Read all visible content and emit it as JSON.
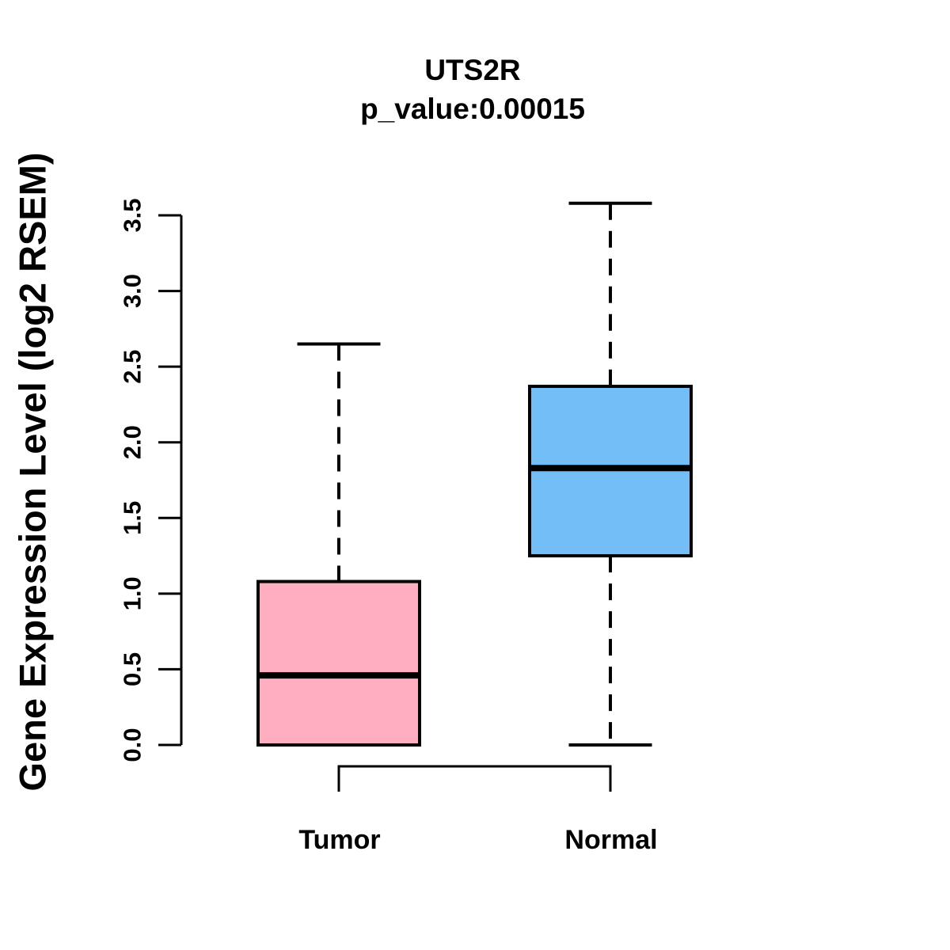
{
  "header": {
    "title": "UTS2R",
    "subtitle": "p_value:0.00015"
  },
  "chart_data": {
    "type": "boxplot",
    "title": "UTS2R",
    "subtitle": "p_value:0.00015",
    "ylabel": "Gene Expression Level (log2 RSEM)",
    "xlabel": "",
    "categories": [
      "Tumor",
      "Normal"
    ],
    "series": [
      {
        "name": "Tumor",
        "lower_whisker": 0.0,
        "q1": 0.0,
        "median": 0.46,
        "q3": 1.08,
        "upper_whisker": 2.65,
        "fill": "#FFAEC0"
      },
      {
        "name": "Normal",
        "lower_whisker": 0.0,
        "q1": 1.25,
        "median": 1.83,
        "q3": 2.37,
        "upper_whisker": 3.58,
        "fill": "#74BEF8"
      }
    ],
    "yticks": [
      0.0,
      0.5,
      1.0,
      1.5,
      2.0,
      2.5,
      3.0,
      3.5
    ],
    "ylim": [
      0.0,
      3.5
    ],
    "grid": false,
    "legend": "none",
    "comparison_bracket": {
      "between": [
        "Tumor",
        "Normal"
      ],
      "label": ""
    },
    "colors": {
      "stroke": "#000000",
      "tumor_fill": "#FFAEC0",
      "normal_fill": "#74BEF8"
    }
  }
}
